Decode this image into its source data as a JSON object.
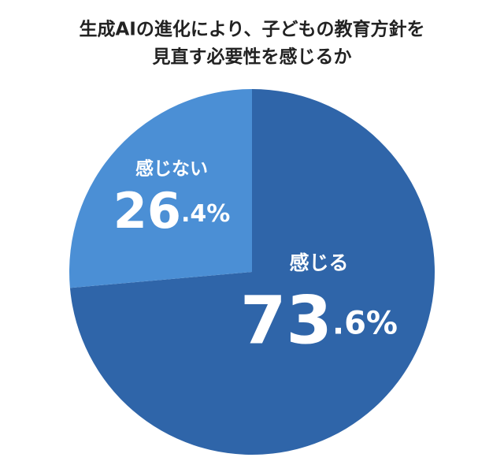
{
  "chart_data": {
    "type": "pie",
    "title_lines": [
      "生成AIの進化により、子どもの教育方針を",
      "見直す必要性を感じるか"
    ],
    "categories": [
      "感じる",
      "感じない"
    ],
    "values": [
      73.6,
      26.4
    ],
    "value_labels": [
      "73.6%",
      "26.4%"
    ],
    "colors": [
      "#2f65a9",
      "#4b8fd5"
    ]
  }
}
